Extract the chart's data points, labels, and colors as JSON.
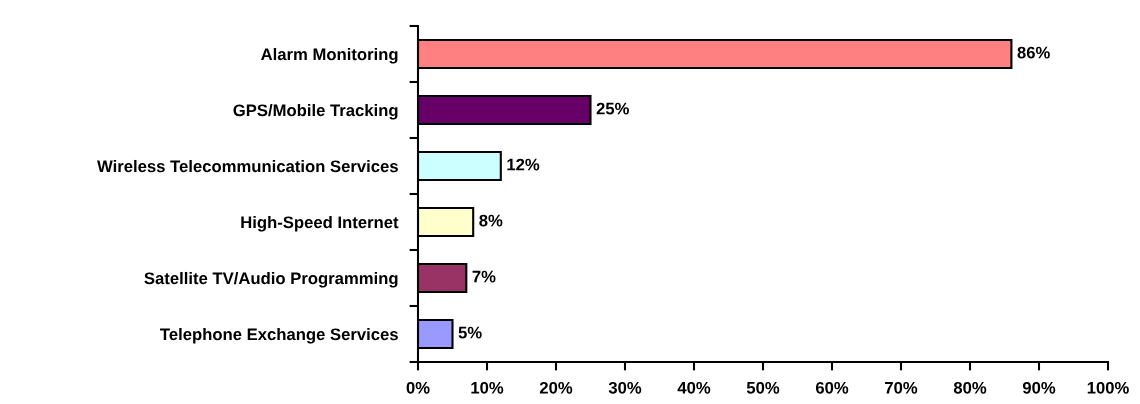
{
  "chart_data": {
    "type": "bar",
    "orientation": "horizontal",
    "categories": [
      "Alarm Monitoring",
      "GPS/Mobile Tracking",
      "Wireless Telecommunication Services",
      "High-Speed Internet",
      "Satellite TV/Audio Programming",
      "Telephone Exchange Services"
    ],
    "values": [
      86,
      25,
      12,
      8,
      7,
      5
    ],
    "colors": [
      "#ff8080",
      "#660066",
      "#ccffff",
      "#ffffcc",
      "#993366",
      "#9999ff"
    ],
    "value_labels": [
      "86%",
      "25%",
      "12%",
      "8%",
      "7%",
      "5%"
    ],
    "xlim": [
      0,
      100
    ],
    "xticks": [
      {
        "value": 0,
        "label": "0%"
      },
      {
        "value": 10,
        "label": "10%"
      },
      {
        "value": 20,
        "label": "20%"
      },
      {
        "value": 30,
        "label": "30%"
      },
      {
        "value": 40,
        "label": "40%"
      },
      {
        "value": 50,
        "label": "50%"
      },
      {
        "value": 60,
        "label": "60%"
      },
      {
        "value": 70,
        "label": "70%"
      },
      {
        "value": 80,
        "label": "80%"
      },
      {
        "value": 90,
        "label": "90%"
      },
      {
        "value": 100,
        "label": "100%"
      }
    ],
    "grid": false,
    "legend": false
  }
}
